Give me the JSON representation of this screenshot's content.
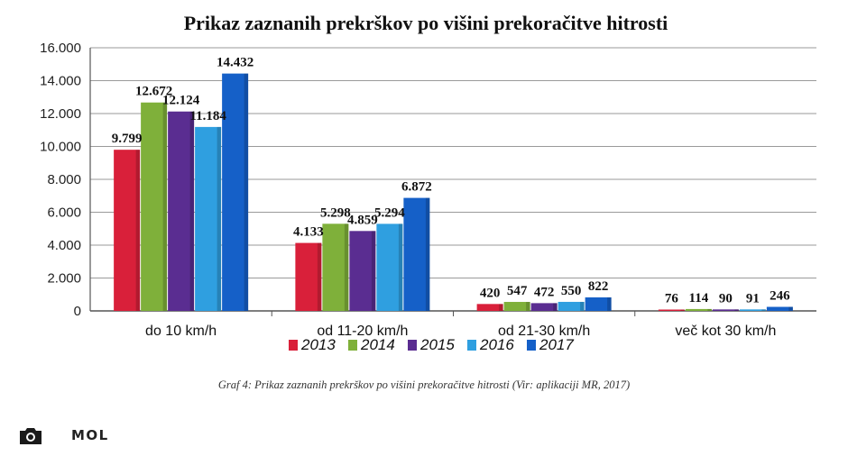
{
  "chart_data": {
    "type": "bar",
    "title": "Prikaz zaznanih prekrškov po višini prekoračitve hitrosti",
    "categories": [
      "do 10 km/h",
      "od 11-20 km/h",
      "od 21-30 km/h",
      "več kot 30 km/h"
    ],
    "series": [
      {
        "name": "2013",
        "color": "#d9203a",
        "values": [
          9799,
          4133,
          420,
          76
        ],
        "labels": [
          "9.799",
          "4.133",
          "420",
          "76"
        ]
      },
      {
        "name": "2014",
        "color": "#7fb03a",
        "values": [
          12672,
          5298,
          547,
          114
        ],
        "labels": [
          "12.672",
          "5.298",
          "547",
          "114"
        ]
      },
      {
        "name": "2015",
        "color": "#5a2d91",
        "values": [
          12124,
          4859,
          472,
          90
        ],
        "labels": [
          "12.124",
          "4.859",
          "472",
          "90"
        ]
      },
      {
        "name": "2016",
        "color": "#2f9fe0",
        "values": [
          11184,
          5294,
          550,
          91
        ],
        "labels": [
          "11.184",
          "5.294",
          "550",
          "91"
        ]
      },
      {
        "name": "2017",
        "color": "#1560c8",
        "values": [
          14432,
          6872,
          822,
          246
        ],
        "labels": [
          "14.432",
          "6.872",
          "822",
          "246"
        ]
      }
    ],
    "ylim": [
      0,
      16000
    ],
    "yticks": [
      0,
      2000,
      4000,
      6000,
      8000,
      10000,
      12000,
      14000,
      16000
    ],
    "ytick_labels": [
      "0",
      "2.000",
      "4.000",
      "6.000",
      "8.000",
      "10.000",
      "12.000",
      "14.000",
      "16.000"
    ],
    "xlabel": "",
    "ylabel": "",
    "grid": true,
    "legend": "bottom"
  },
  "caption": "Graf 4: Prikaz zaznanih prekrškov po višini prekoračitve hitrosti (Vir: aplikaciji MR, 2017)",
  "footer": {
    "brand": "MOL",
    "icon": "camera-icon"
  }
}
